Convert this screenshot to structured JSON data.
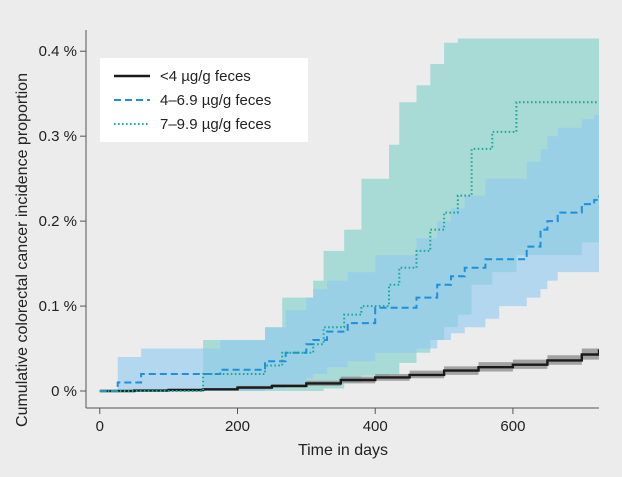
{
  "chart_data": {
    "type": "line",
    "title": "",
    "xlabel": "Time in days",
    "ylabel": "Cumulative colorectal cancer incidence proportion",
    "xlim": [
      -20,
      725
    ],
    "ylim": [
      -0.02,
      0.425
    ],
    "x_ticks": [
      0,
      200,
      400,
      600
    ],
    "x_tick_labels": [
      "0",
      "200",
      "400",
      "600"
    ],
    "y_ticks": [
      0,
      0.1,
      0.2,
      0.3,
      0.4
    ],
    "y_tick_labels": [
      "0 %",
      "0.1 %",
      "0.2 %",
      "0.3 %",
      "0.4 %"
    ],
    "grid": false,
    "legend_position": "top-left",
    "series": [
      {
        "name": "<4 µg/g feces",
        "color": "#1a1a1a",
        "dash": "solid",
        "band_color": "#8a8a8a",
        "x": [
          0,
          50,
          100,
          150,
          200,
          250,
          300,
          350,
          400,
          450,
          500,
          550,
          600,
          650,
          700,
          725
        ],
        "y": [
          0,
          0.0005,
          0.0012,
          0.002,
          0.004,
          0.006,
          0.009,
          0.013,
          0.016,
          0.019,
          0.024,
          0.028,
          0.031,
          0.036,
          0.043,
          0.049
        ],
        "lower": [
          0,
          0,
          0.0005,
          0.001,
          0.002,
          0.004,
          0.006,
          0.009,
          0.012,
          0.015,
          0.019,
          0.023,
          0.026,
          0.031,
          0.037,
          0.042
        ],
        "upper": [
          0,
          0.001,
          0.002,
          0.003,
          0.006,
          0.008,
          0.012,
          0.017,
          0.02,
          0.024,
          0.029,
          0.034,
          0.037,
          0.042,
          0.05,
          0.056
        ]
      },
      {
        "name": "4–6.9 µg/g feces",
        "color": "#1e8fd8",
        "dash": "dashed",
        "band_color": "#8fc9f0",
        "x": [
          0,
          26,
          60,
          150,
          175,
          240,
          270,
          300,
          310,
          330,
          360,
          400,
          430,
          460,
          490,
          510,
          530,
          560,
          580,
          620,
          640,
          650,
          665,
          700,
          718,
          725
        ],
        "y": [
          0,
          0.01,
          0.02,
          0.02,
          0.025,
          0.035,
          0.045,
          0.055,
          0.06,
          0.07,
          0.08,
          0.098,
          0.098,
          0.11,
          0.125,
          0.135,
          0.145,
          0.155,
          0.155,
          0.17,
          0.19,
          0.2,
          0.21,
          0.22,
          0.225,
          0.23
        ],
        "lower": [
          0,
          0,
          0,
          0,
          0,
          0.003,
          0.008,
          0.015,
          0.02,
          0.028,
          0.035,
          0.045,
          0.045,
          0.05,
          0.06,
          0.068,
          0.075,
          0.085,
          0.1,
          0.11,
          0.12,
          0.13,
          0.14,
          0.14,
          0.14,
          0.14
        ],
        "upper": [
          0,
          0.04,
          0.05,
          0.05,
          0.06,
          0.075,
          0.095,
          0.11,
          0.12,
          0.13,
          0.14,
          0.16,
          0.16,
          0.18,
          0.2,
          0.215,
          0.23,
          0.25,
          0.25,
          0.27,
          0.285,
          0.3,
          0.31,
          0.32,
          0.325,
          0.325
        ]
      },
      {
        "name": "7–9.9 µg/g feces",
        "color": "#1aa89a",
        "dash": "dotted",
        "band_color": "#7fd0c8",
        "x": [
          0,
          150,
          240,
          265,
          310,
          325,
          355,
          380,
          420,
          435,
          460,
          480,
          500,
          520,
          540,
          570,
          605,
          700,
          725
        ],
        "y": [
          0,
          0.02,
          0.03,
          0.045,
          0.055,
          0.075,
          0.09,
          0.1,
          0.125,
          0.145,
          0.165,
          0.19,
          0.21,
          0.23,
          0.285,
          0.305,
          0.34,
          0.34,
          0.34
        ],
        "lower": [
          0,
          0,
          0,
          0,
          0,
          0.003,
          0.01,
          0.018,
          0.02,
          0.033,
          0.045,
          0.06,
          0.075,
          0.09,
          0.125,
          0.14,
          0.16,
          0.175,
          0.175
        ],
        "upper": [
          0,
          0.06,
          0.075,
          0.11,
          0.13,
          0.165,
          0.19,
          0.25,
          0.29,
          0.34,
          0.36,
          0.385,
          0.41,
          0.415,
          0.415,
          0.415,
          0.415,
          0.415,
          0.415
        ]
      }
    ]
  }
}
